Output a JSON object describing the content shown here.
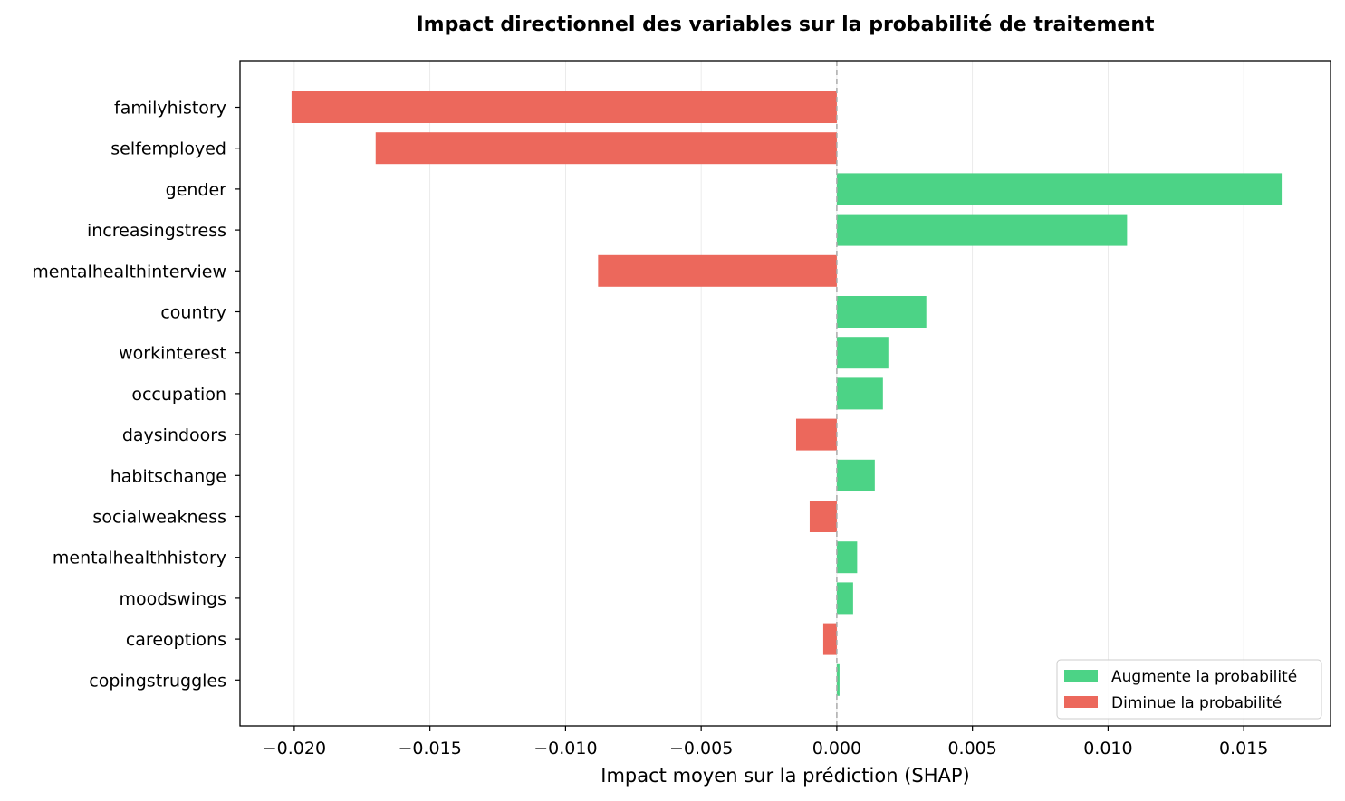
{
  "chart_data": {
    "type": "bar",
    "orientation": "horizontal",
    "title": "Impact directionnel des variables sur la probabilité de traitement",
    "xlabel": "Impact moyen sur la prédiction (SHAP)",
    "ylabel": "",
    "xlim": [
      -0.022,
      0.0182
    ],
    "x_ticks": [
      -0.02,
      -0.015,
      -0.01,
      -0.005,
      0.0,
      0.005,
      0.01,
      0.015
    ],
    "x_tick_labels": [
      "−0.020",
      "−0.015",
      "−0.010",
      "−0.005",
      "0.000",
      "0.005",
      "0.010",
      "0.015"
    ],
    "categories": [
      "familyhistory",
      "selfemployed",
      "gender",
      "increasingstress",
      "mentalhealthinterview",
      "country",
      "workinterest",
      "occupation",
      "daysindoors",
      "habitschange",
      "socialweakness",
      "mentalhealthhistory",
      "moodswings",
      "careoptions",
      "copingstruggles"
    ],
    "values": [
      -0.0201,
      -0.017,
      0.0164,
      0.0107,
      -0.0088,
      0.0033,
      0.0019,
      0.0017,
      -0.0015,
      0.0014,
      -0.001,
      0.00075,
      0.0006,
      -0.0005,
      0.0001
    ],
    "positive_color": "#4cd386",
    "negative_color": "#ec685c",
    "zero_line": {
      "style": "dashed",
      "color": "#aaaaaa"
    },
    "grid": "vertical",
    "legend": {
      "placement": "lower-right",
      "entries": [
        {
          "label": "Augmente la probabilité",
          "color": "#4cd386"
        },
        {
          "label": "Diminue la probabilité",
          "color": "#ec685c"
        }
      ]
    }
  }
}
